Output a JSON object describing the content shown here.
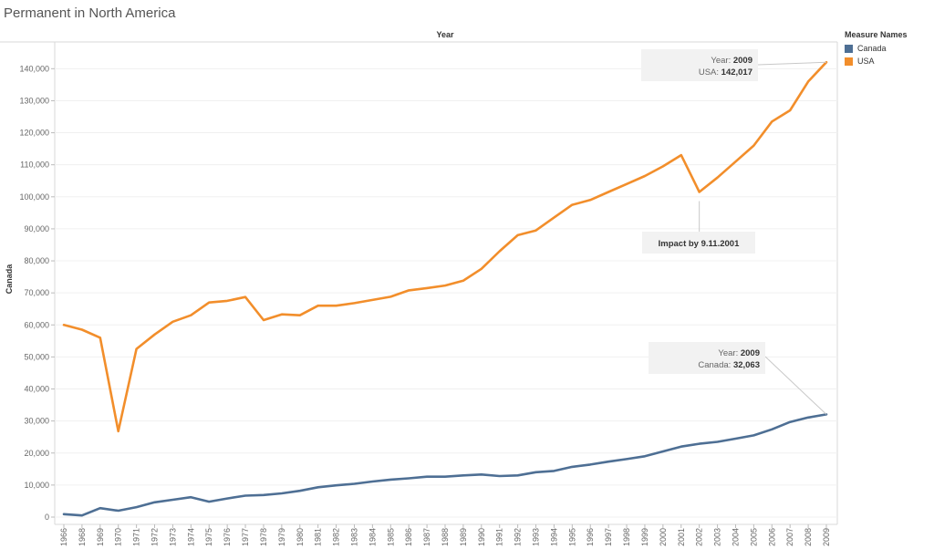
{
  "chart_data": {
    "type": "line",
    "title": "Permanent in North America",
    "xlabel": "Year",
    "ylabel": "Canada",
    "ylim": [
      0,
      145000
    ],
    "yticks": [
      0,
      10000,
      20000,
      30000,
      40000,
      50000,
      60000,
      70000,
      80000,
      90000,
      100000,
      110000,
      120000,
      130000,
      140000
    ],
    "ytick_labels": [
      "0",
      "10,000",
      "20,000",
      "30,000",
      "40,000",
      "50,000",
      "60,000",
      "70,000",
      "80,000",
      "90,000",
      "100,000",
      "110,000",
      "120,000",
      "130,000",
      "140,000"
    ],
    "categories": [
      "1966",
      "1968",
      "1969",
      "1970",
      "1971",
      "1972",
      "1973",
      "1974",
      "1975",
      "1976",
      "1977",
      "1978",
      "1979",
      "1980",
      "1981",
      "1982",
      "1983",
      "1984",
      "1985",
      "1986",
      "1987",
      "1988",
      "1989",
      "1990",
      "1991",
      "1992",
      "1993",
      "1994",
      "1995",
      "1996",
      "1997",
      "1998",
      "1999",
      "2000",
      "2001",
      "2002",
      "2003",
      "2004",
      "2005",
      "2006",
      "2007",
      "2008",
      "2009"
    ],
    "series": [
      {
        "name": "Canada",
        "color": "#4e6f94",
        "values": [
          900,
          500,
          2800,
          2000,
          3100,
          4600,
          5400,
          6200,
          4800,
          5800,
          6700,
          6900,
          7400,
          8200,
          9300,
          9900,
          10400,
          11100,
          11700,
          12100,
          12600,
          12600,
          13000,
          13300,
          12800,
          13000,
          14000,
          14400,
          15700,
          16400,
          17300,
          18100,
          19000,
          20500,
          22000,
          22900,
          23500,
          24500,
          25500,
          27400,
          29700,
          31100,
          32063
        ]
      },
      {
        "name": "USA",
        "color": "#f28e2b",
        "values": [
          60000,
          58500,
          56000,
          26800,
          52500,
          57000,
          61000,
          63000,
          67000,
          67500,
          68700,
          61500,
          63300,
          63000,
          66000,
          66000,
          66800,
          67800,
          68800,
          70800,
          71500,
          72300,
          73800,
          77500,
          83000,
          88000,
          89500,
          93500,
          97500,
          99000,
          101500,
          104000,
          106500,
          109500,
          113000,
          101500,
          106000,
          111000,
          116000,
          123500,
          127000,
          136000,
          142017
        ]
      }
    ],
    "legend": {
      "title": "Measure Names",
      "position": "right",
      "items": [
        "Canada",
        "USA"
      ]
    },
    "annotations": [
      {
        "id": "usa-2009",
        "lines": [
          {
            "label": "Year:",
            "value": "2009"
          },
          {
            "label": "USA:",
            "value": "142,017"
          }
        ],
        "series": "USA",
        "category": "2009"
      },
      {
        "id": "impact",
        "text": "Impact by 9.11.2001",
        "series": "USA",
        "category": "2002"
      },
      {
        "id": "canada-2009",
        "lines": [
          {
            "label": "Year:",
            "value": "2009"
          },
          {
            "label": "Canada:",
            "value": "32,063"
          }
        ],
        "series": "Canada",
        "category": "2009"
      }
    ],
    "grid": true
  }
}
